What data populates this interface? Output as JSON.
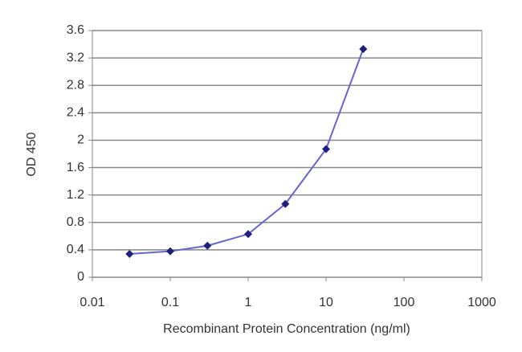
{
  "chart_data": {
    "type": "line",
    "x_label": "Recombinant Protein Concentration (ng/ml)",
    "y_label": "OD 450",
    "xscale": "log",
    "grid": true,
    "x": [
      0.03,
      0.1,
      0.3,
      1,
      3,
      10,
      30
    ],
    "series": [
      {
        "color": "#6666cc",
        "marker_color": "#1f1f80",
        "values": [
          0.34,
          0.38,
          0.46,
          0.63,
          1.07,
          1.87,
          3.33
        ]
      }
    ],
    "xlim": [
      0.01,
      1000
    ],
    "xticks": [
      0.01,
      0.1,
      1,
      10,
      100,
      1000
    ],
    "ylim": [
      0,
      3.6
    ],
    "yticks": [
      0,
      0.4,
      0.8,
      1.2,
      1.6,
      2,
      2.4,
      2.8,
      3.2,
      3.6
    ]
  }
}
